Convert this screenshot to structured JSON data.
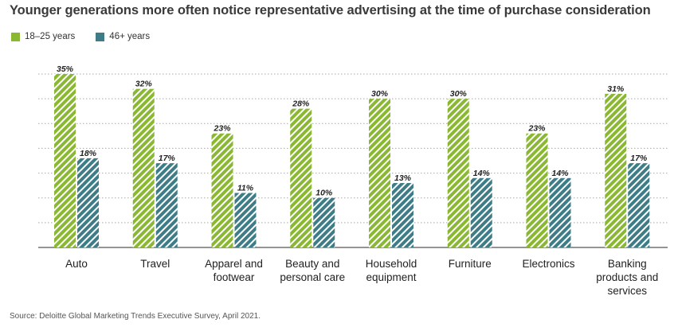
{
  "title": "Younger generations more often notice representative advertising at the time of purchase consideration",
  "source": "Source: Deloitte Global Marketing Trends Executive Survey, April 2021.",
  "colors": {
    "series1": "#8ab833",
    "series2": "#3e7d87",
    "grid": "#a8a8a8",
    "axis": "#555555"
  },
  "legend": [
    {
      "label": "18–25 years",
      "color": "#8ab833"
    },
    {
      "label": "46+ years",
      "color": "#3e7d87"
    }
  ],
  "chart_data": {
    "type": "bar",
    "title": "Younger generations more often notice representative advertising at the time of purchase consideration",
    "categories": [
      [
        "Auto"
      ],
      [
        "Travel"
      ],
      [
        "Apparel and",
        "footwear"
      ],
      [
        "Beauty and",
        "personal care"
      ],
      [
        "Household",
        "equipment"
      ],
      [
        "Furniture"
      ],
      [
        "Electronics"
      ],
      [
        "Banking",
        "products and",
        "services"
      ]
    ],
    "series": [
      {
        "name": "18–25 years",
        "values": [
          35,
          32,
          23,
          28,
          30,
          30,
          23,
          31
        ],
        "labels": [
          "35%",
          "32%",
          "23%",
          "28%",
          "30%",
          "30%",
          "23%",
          "31%"
        ]
      },
      {
        "name": "46+ years",
        "values": [
          18,
          17,
          11,
          10,
          13,
          14,
          14,
          17
        ],
        "labels": [
          "18%",
          "17%",
          "11%",
          "10%",
          "13%",
          "14%",
          "14%",
          "17%"
        ]
      }
    ],
    "ylim": [
      0,
      35
    ],
    "grid": true,
    "xlabel": "",
    "ylabel": "",
    "legend_position": "top-left"
  }
}
